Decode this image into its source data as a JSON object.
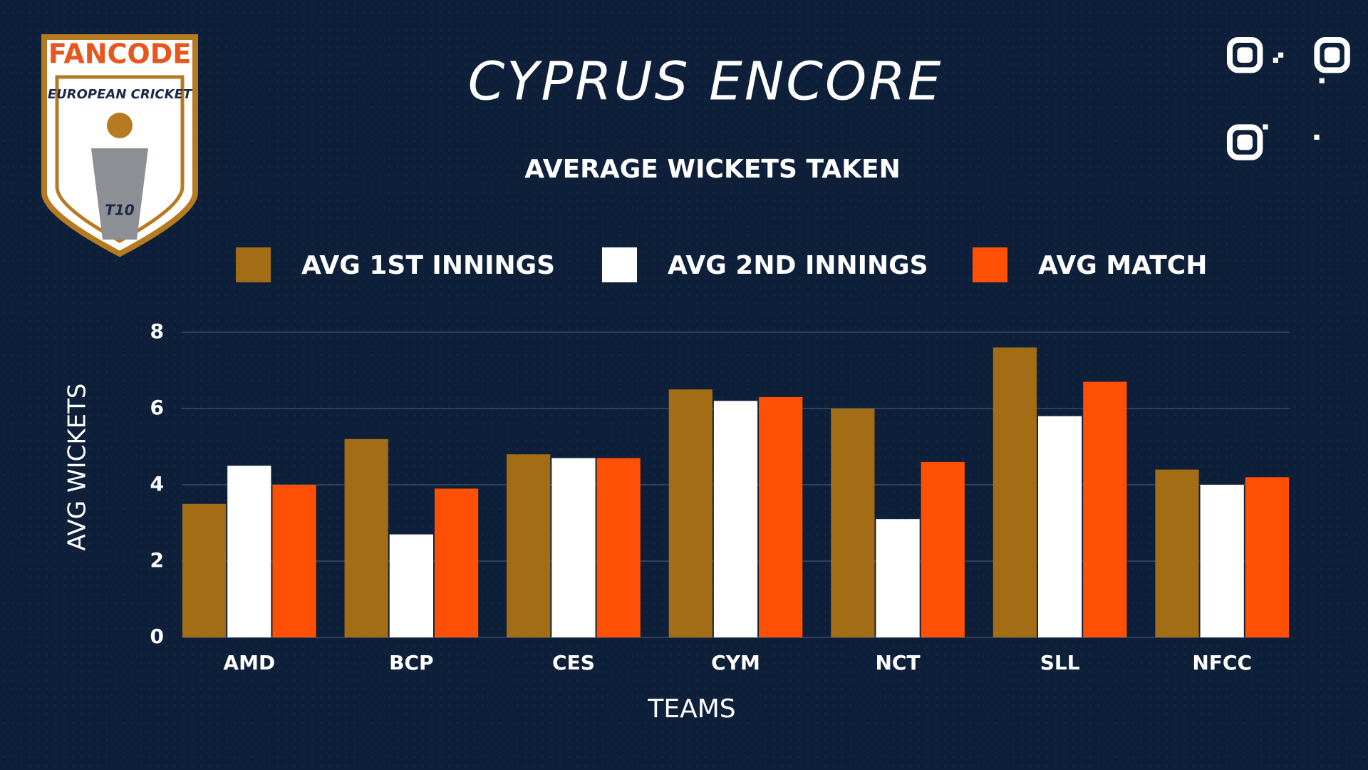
{
  "logo": {
    "brand": "FANCODE",
    "league": "EUROPEAN CRICKET",
    "format": "T10"
  },
  "chart_data": {
    "type": "bar",
    "title": "CYPRUS ENCORE",
    "subtitle": "AVERAGE WICKETS TAKEN",
    "x_label": "TEAMS",
    "y_label": "AVG WICKETS",
    "categories": [
      "AMD",
      "BCP",
      "CES",
      "CYM",
      "NCT",
      "SLL",
      "NFCC"
    ],
    "series": [
      {
        "name": "AVG 1ST INNINGS",
        "color": "#a36d15",
        "values": [
          3.5,
          5.2,
          4.8,
          6.5,
          6.0,
          7.6,
          4.4
        ]
      },
      {
        "name": "AVG 2ND INNINGS",
        "color": "#ffffff",
        "values": [
          4.5,
          2.7,
          4.7,
          6.2,
          3.1,
          5.8,
          4.0
        ]
      },
      {
        "name": "AVG MATCH",
        "color": "#ff5006",
        "values": [
          4.0,
          3.9,
          4.7,
          6.3,
          4.6,
          6.7,
          4.2
        ]
      }
    ],
    "ylim": [
      0,
      8
    ],
    "yticks": [
      0,
      2,
      4,
      6,
      8
    ],
    "grid": true,
    "legend": "top"
  }
}
